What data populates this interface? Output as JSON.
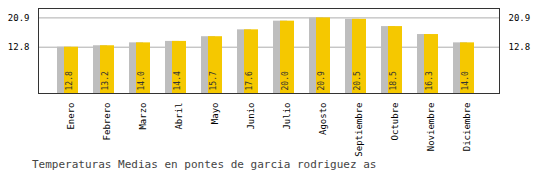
{
  "chart_data": {
    "type": "bar",
    "title": "Temperaturas Medias en pontes de garcia rodriguez as",
    "categories": [
      "Enero",
      "Febrero",
      "Marzo",
      "Abril",
      "Mayo",
      "Junio",
      "Julio",
      "Agosto",
      "Septiembre",
      "Octubre",
      "Noviembre",
      "Diciembre"
    ],
    "values": [
      12.8,
      13.2,
      14.0,
      14.4,
      15.7,
      17.6,
      20.0,
      20.9,
      20.5,
      18.5,
      16.3,
      14.0
    ],
    "value_labels": [
      "12.8",
      "13.2",
      "14.0",
      "14.4",
      "15.7",
      "17.6",
      "20.0",
      "20.9",
      "20.5",
      "18.5",
      "16.3",
      "14.0"
    ],
    "color": "#F5C800",
    "ylim": [
      0.0,
      23.5
    ],
    "yticks": [
      12.8,
      20.9
    ],
    "grid": true,
    "data_labels": true
  }
}
